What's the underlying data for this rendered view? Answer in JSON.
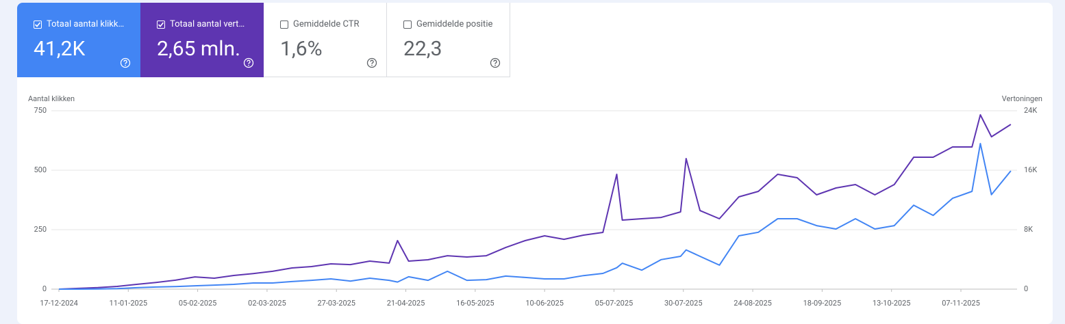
{
  "cards": [
    {
      "label": "Totaal aantal klikk…",
      "value": "41,2K",
      "selected": true
    },
    {
      "label": "Totaal aantal vert…",
      "value": "2,65 mln.",
      "selected": true
    },
    {
      "label": "Gemiddelde CTR",
      "value": "1,6%",
      "selected": false
    },
    {
      "label": "Gemiddelde positie",
      "value": "22,3",
      "selected": false
    }
  ],
  "chart_data": {
    "type": "line",
    "y_label": "Aantal klikken",
    "y2_label": "Vertoningen",
    "x": [
      "17-12-2024",
      "24-12-2024",
      "31-12-2024",
      "07-01-2025",
      "14-01-2025",
      "21-01-2025",
      "28-01-2025",
      "04-02-2025",
      "11-02-2025",
      "18-02-2025",
      "25-02-2025",
      "04-03-2025",
      "11-03-2025",
      "18-03-2025",
      "25-03-2025",
      "01-04-2025",
      "08-04-2025",
      "15-04-2025",
      "18-04-2025",
      "22-04-2025",
      "29-04-2025",
      "06-05-2025",
      "13-05-2025",
      "20-05-2025",
      "27-05-2025",
      "03-06-2025",
      "10-06-2025",
      "17-06-2025",
      "24-06-2025",
      "01-07-2025",
      "06-07-2025",
      "08-07-2025",
      "15-07-2025",
      "22-07-2025",
      "29-07-2025",
      "31-07-2025",
      "05-08-2025",
      "12-08-2025",
      "19-08-2025",
      "26-08-2025",
      "02-09-2025",
      "09-09-2025",
      "16-09-2025",
      "23-09-2025",
      "30-09-2025",
      "07-10-2025",
      "14-10-2025",
      "21-10-2025",
      "28-10-2025",
      "04-11-2025",
      "11-11-2025",
      "14-11-2025",
      "18-11-2025",
      "25-11-2025"
    ],
    "series": [
      {
        "color": "#4285f4",
        "values": [
          0,
          0,
          1,
          2,
          6,
          9,
          11,
          14,
          17,
          20,
          26,
          26,
          32,
          37,
          43,
          34,
          46,
          37,
          30,
          52,
          37,
          75,
          37,
          40,
          55,
          49,
          43,
          43,
          57,
          66,
          90,
          109,
          80,
          124,
          138,
          165,
          138,
          101,
          224,
          239,
          296,
          296,
          267,
          253,
          296,
          253,
          267,
          353,
          310,
          382,
          411,
          612,
          397,
          497
        ]
      },
      {
        "color": "#5e35b1",
        "axis": "y2",
        "values": [
          0,
          100,
          200,
          370,
          640,
          900,
          1200,
          1650,
          1470,
          1840,
          2100,
          2400,
          2850,
          3030,
          3400,
          3300,
          3770,
          3500,
          6530,
          3770,
          3950,
          4500,
          4320,
          4500,
          5600,
          6530,
          7170,
          6700,
          7260,
          7630,
          15450,
          9290,
          9470,
          9650,
          10390,
          17560,
          10570,
          9470,
          12410,
          13150,
          15450,
          14990,
          12690,
          13610,
          14070,
          12690,
          14070,
          17750,
          17750,
          19130,
          19130,
          23450,
          20500,
          22160
        ]
      }
    ],
    "xticks": [
      "17-12-2024",
      "11-01-2025",
      "05-02-2025",
      "02-03-2025",
      "27-03-2025",
      "21-04-2025",
      "16-05-2025",
      "10-06-2025",
      "05-07-2025",
      "30-07-2025",
      "24-08-2025",
      "18-09-2025",
      "13-10-2025",
      "07-11-2025"
    ],
    "ylim": [
      0,
      750
    ],
    "yticks": [
      0,
      250,
      500,
      750
    ],
    "y2lim": [
      0,
      24000
    ],
    "y2ticks": [
      0,
      {
        "value": 8000,
        "label": "8K"
      },
      {
        "value": 16000,
        "label": "16K"
      },
      {
        "value": 24000,
        "label": "24K"
      }
    ],
    "grid": true
  }
}
